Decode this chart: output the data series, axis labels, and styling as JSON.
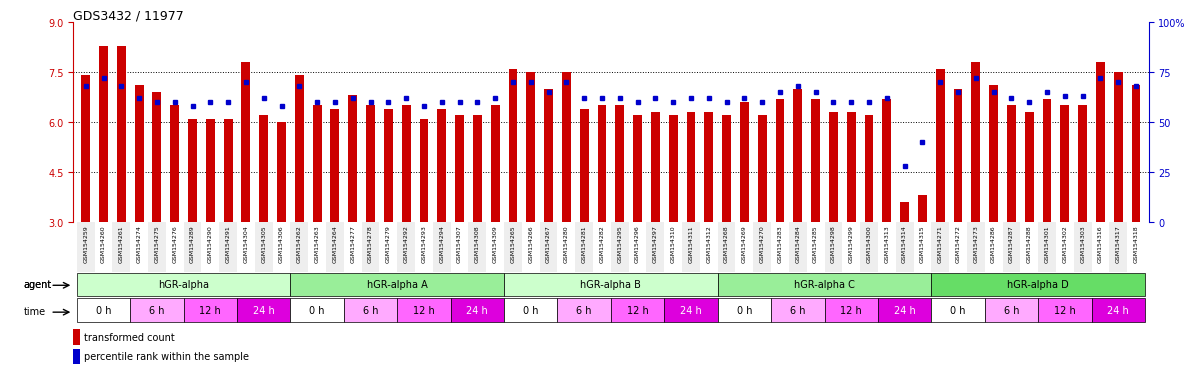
{
  "title": "GDS3432 / 11977",
  "ylim_left": [
    3,
    9
  ],
  "ylim_right": [
    0,
    100
  ],
  "yticks_left": [
    3,
    4.5,
    6,
    7.5,
    9
  ],
  "yticks_right": [
    0,
    25,
    50,
    75,
    100
  ],
  "hgrid_values": [
    4.5,
    6,
    7.5
  ],
  "samples": [
    "GSM154259",
    "GSM154260",
    "GSM154261",
    "GSM154274",
    "GSM154275",
    "GSM154276",
    "GSM154289",
    "GSM154290",
    "GSM154291",
    "GSM154304",
    "GSM154305",
    "GSM154306",
    "GSM154262",
    "GSM154263",
    "GSM154264",
    "GSM154277",
    "GSM154278",
    "GSM154279",
    "GSM154292",
    "GSM154293",
    "GSM154294",
    "GSM154307",
    "GSM154308",
    "GSM154309",
    "GSM154265",
    "GSM154266",
    "GSM154267",
    "GSM154280",
    "GSM154281",
    "GSM154282",
    "GSM154295",
    "GSM154296",
    "GSM154297",
    "GSM154310",
    "GSM154311",
    "GSM154312",
    "GSM154268",
    "GSM154269",
    "GSM154270",
    "GSM154283",
    "GSM154284",
    "GSM154285",
    "GSM154298",
    "GSM154299",
    "GSM154300",
    "GSM154313",
    "GSM154314",
    "GSM154315",
    "GSM154271",
    "GSM154272",
    "GSM154273",
    "GSM154286",
    "GSM154287",
    "GSM154288",
    "GSM154301",
    "GSM154302",
    "GSM154303",
    "GSM154316",
    "GSM154317",
    "GSM154318"
  ],
  "red_values": [
    7.4,
    8.3,
    8.3,
    7.1,
    6.9,
    6.5,
    6.1,
    6.1,
    6.1,
    7.8,
    6.2,
    6.0,
    7.4,
    6.5,
    6.4,
    6.8,
    6.5,
    6.4,
    6.5,
    6.1,
    6.4,
    6.2,
    6.2,
    6.5,
    7.6,
    7.5,
    7.0,
    7.5,
    6.4,
    6.5,
    6.5,
    6.2,
    6.3,
    6.2,
    6.3,
    6.3,
    6.2,
    6.6,
    6.2,
    6.7,
    7.0,
    6.7,
    6.3,
    6.3,
    6.2,
    6.7,
    3.6,
    3.8,
    7.6,
    7.0,
    7.8,
    7.1,
    6.5,
    6.3,
    6.7,
    6.5,
    6.5,
    7.8,
    7.5,
    7.1
  ],
  "blue_values": [
    68,
    72,
    68,
    62,
    60,
    60,
    58,
    60,
    60,
    70,
    62,
    58,
    68,
    60,
    60,
    62,
    60,
    60,
    62,
    58,
    60,
    60,
    60,
    62,
    70,
    70,
    65,
    70,
    62,
    62,
    62,
    60,
    62,
    60,
    62,
    62,
    60,
    62,
    60,
    65,
    68,
    65,
    60,
    60,
    60,
    62,
    28,
    40,
    70,
    65,
    72,
    65,
    62,
    60,
    65,
    63,
    63,
    72,
    70,
    68
  ],
  "groups": [
    {
      "label": "hGR-alpha",
      "start": 0,
      "end": 12,
      "color": "#ccffcc"
    },
    {
      "label": "hGR-alpha A",
      "start": 12,
      "end": 24,
      "color": "#99ee99"
    },
    {
      "label": "hGR-alpha B",
      "start": 24,
      "end": 36,
      "color": "#ccffcc"
    },
    {
      "label": "hGR-alpha C",
      "start": 36,
      "end": 48,
      "color": "#99ee99"
    },
    {
      "label": "hGR-alpha D",
      "start": 48,
      "end": 60,
      "color": "#66dd66"
    }
  ],
  "time_labels": [
    "0 h",
    "6 h",
    "12 h",
    "24 h"
  ],
  "time_colors": [
    "#ffffff",
    "#ffaaff",
    "#ff66ff",
    "#dd00dd"
  ],
  "time_text_colors": [
    "#000000",
    "#000000",
    "#000000",
    "#ffffff"
  ],
  "bar_color": "#cc0000",
  "dot_color": "#0000cc",
  "bg_color": "#ffffff",
  "axis_color_left": "#cc0000",
  "axis_color_right": "#0000cc"
}
